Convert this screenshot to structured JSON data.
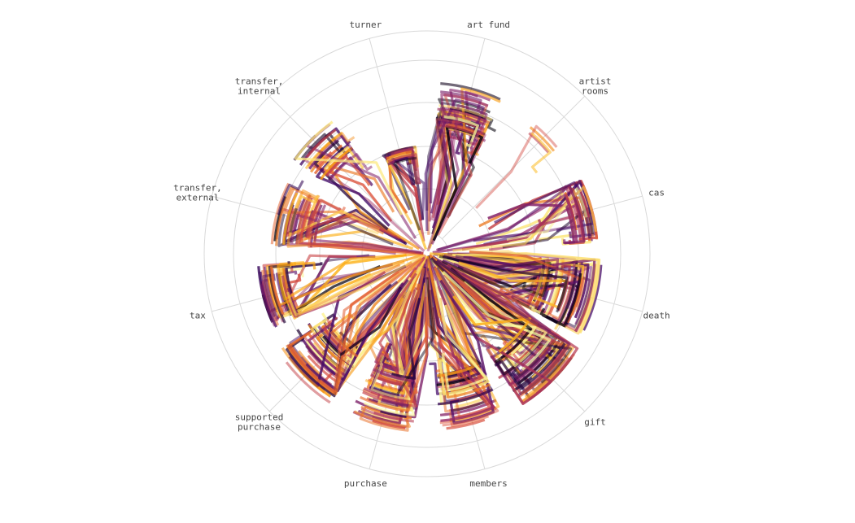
{
  "chart_data": {
    "type": "radial-strand",
    "title": "",
    "grid": true,
    "legend": "none",
    "rings": 6,
    "colormap": [
      "#000004",
      "#420a68",
      "#932667",
      "#dd513a",
      "#fca50a",
      "#fcffa4"
    ],
    "categories": [
      {
        "key": "turner",
        "label_lines": [
          "turner"
        ],
        "angle_deg": -15
      },
      {
        "key": "art_fund",
        "label_lines": [
          "art fund"
        ],
        "angle_deg": 15
      },
      {
        "key": "artist_rooms",
        "label_lines": [
          "artist",
          "rooms"
        ],
        "angle_deg": 45
      },
      {
        "key": "cas",
        "label_lines": [
          "cas"
        ],
        "angle_deg": 75
      },
      {
        "key": "death",
        "label_lines": [
          "death"
        ],
        "angle_deg": 105
      },
      {
        "key": "gift",
        "label_lines": [
          "gift"
        ],
        "angle_deg": 135
      },
      {
        "key": "members",
        "label_lines": [
          "members"
        ],
        "angle_deg": 165
      },
      {
        "key": "purchase",
        "label_lines": [
          "purchase"
        ],
        "angle_deg": 195
      },
      {
        "key": "supported_purchase",
        "label_lines": [
          "supported",
          "purchase"
        ],
        "angle_deg": 225
      },
      {
        "key": "tax",
        "label_lines": [
          "tax"
        ],
        "angle_deg": 255
      },
      {
        "key": "transfer_external",
        "label_lines": [
          "transfer,",
          "external"
        ],
        "angle_deg": 285
      },
      {
        "key": "transfer_internal",
        "label_lines": [
          "transfer,",
          "internal"
        ],
        "angle_deg": 315
      }
    ],
    "series_density": {
      "turner": {
        "count": 28,
        "r_min": 2.4,
        "r_max": 2.9,
        "arc_width_deg": 18,
        "inflow": 0.35
      },
      "art_fund": {
        "count": 46,
        "r_min": 2.3,
        "r_max": 4.6,
        "arc_width_deg": 22,
        "inflow": 0.6
      },
      "artist_rooms": {
        "count": 4,
        "r_min": 4.0,
        "r_max": 4.6,
        "arc_width_deg": 12,
        "inflow": 0.1
      },
      "cas": {
        "count": 30,
        "r_min": 3.6,
        "r_max": 4.6,
        "arc_width_deg": 22,
        "inflow": 0.5
      },
      "death": {
        "count": 60,
        "r_min": 1.9,
        "r_max": 4.8,
        "arc_width_deg": 26,
        "inflow": 0.7
      },
      "gift": {
        "count": 60,
        "r_min": 2.4,
        "r_max": 4.8,
        "arc_width_deg": 26,
        "inflow": 0.75
      },
      "members": {
        "count": 46,
        "r_min": 2.4,
        "r_max": 4.8,
        "arc_width_deg": 22,
        "inflow": 0.6
      },
      "purchase": {
        "count": 56,
        "r_min": 2.2,
        "r_max": 4.8,
        "arc_width_deg": 22,
        "inflow": 0.7
      },
      "supported_purchase": {
        "count": 50,
        "r_min": 2.2,
        "r_max": 4.8,
        "arc_width_deg": 24,
        "inflow": 0.55
      },
      "tax": {
        "count": 34,
        "r_min": 3.3,
        "r_max": 4.6,
        "arc_width_deg": 22,
        "inflow": 0.5
      },
      "transfer_external": {
        "count": 36,
        "r_min": 2.4,
        "r_max": 4.2,
        "arc_width_deg": 24,
        "inflow": 0.4
      },
      "transfer_internal": {
        "count": 26,
        "r_min": 2.6,
        "r_max": 4.4,
        "arc_width_deg": 20,
        "inflow": 0.35
      }
    }
  }
}
